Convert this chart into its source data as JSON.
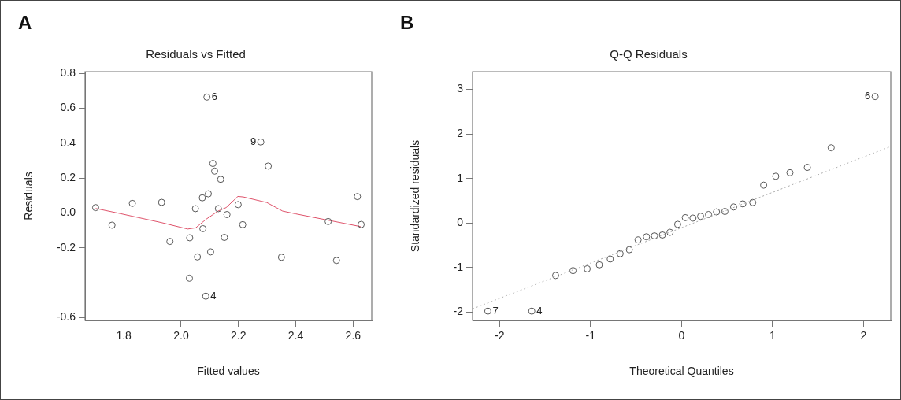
{
  "chart_data": [
    {
      "type": "scatter",
      "title": "Residuals vs Fitted",
      "xlabel": "Fitted values",
      "ylabel": "Residuals",
      "xlim": [
        1.665,
        2.665
      ],
      "ylim": [
        -0.616,
        0.81
      ],
      "xticks": [
        1.8,
        {
          "value": 2.0,
          "label": "2.0"
        },
        2.2,
        2.4,
        2.6
      ],
      "yticks": [
        -0.6,
        {
          "value": -0.4,
          "label": null
        },
        -0.2,
        {
          "value": 0,
          "label": "0.0"
        },
        0.2,
        0.4,
        0.6,
        0.8
      ],
      "grid": false,
      "legend": false,
      "ref_lines": [
        {
          "axis": "y",
          "value": 0,
          "color": "#d0d0d0",
          "line_style": "dotted"
        }
      ],
      "series": [
        {
          "type": "scatter",
          "color": "#595959",
          "marker": "circle",
          "x": [
            1.702,
            1.759,
            1.83,
            1.932,
            1.961,
            2.029,
            2.03,
            2.05,
            2.057,
            2.074,
            2.076,
            2.086,
            2.09,
            2.095,
            2.103,
            2.111,
            2.117,
            2.13,
            2.138,
            2.151,
            2.16,
            2.199,
            2.215,
            2.278,
            2.304,
            2.35,
            2.513,
            2.542,
            2.615,
            2.628
          ],
          "values": [
            0.031,
            -0.07,
            0.055,
            0.061,
            -0.163,
            -0.374,
            -0.142,
            0.025,
            -0.252,
            0.087,
            -0.09,
            -0.477,
            0.664,
            0.11,
            -0.223,
            0.284,
            0.24,
            0.025,
            0.193,
            -0.14,
            -0.009,
            0.048,
            -0.067,
            0.407,
            0.269,
            -0.254,
            -0.049,
            -0.272,
            0.094,
            -0.066
          ]
        },
        {
          "type": "line",
          "color": "#df536b",
          "marker": "none",
          "line_style": "solid",
          "x": [
            1.702,
            1.77,
            1.931,
            2.023,
            2.051,
            2.088,
            2.129,
            2.157,
            2.198,
            2.217,
            2.299,
            2.354,
            2.4,
            2.626
          ],
          "values": [
            0.026,
            0.003,
            -0.055,
            -0.092,
            -0.085,
            -0.035,
            0.011,
            0.031,
            0.095,
            0.092,
            0.06,
            0.011,
            -0.005,
            -0.078
          ]
        }
      ],
      "annotations": [
        "A",
        {
          "text": "6",
          "x": 2.09,
          "y": 0.664
        },
        {
          "text": "9",
          "x": 2.278,
          "y": 0.407
        },
        {
          "text": "4",
          "x": 2.086,
          "y": -0.477
        }
      ]
    },
    {
      "type": "scatter",
      "title": "Q-Q Residuals",
      "xlabel": "Theoretical Quantiles",
      "ylabel": "Standardized residuals",
      "xlim": [
        -2.296,
        2.3
      ],
      "ylim": [
        -2.19,
        3.4
      ],
      "xticks": [
        -2,
        -1,
        0,
        1,
        2
      ],
      "yticks": [
        -2,
        -1,
        0,
        1,
        2,
        3
      ],
      "grid": false,
      "legend": false,
      "series": [
        {
          "type": "line",
          "color": "#aaaaaa",
          "marker": "none",
          "line_style": "dotted",
          "x": [
            -2.296,
            2.288
          ],
          "values": [
            -1.93,
            1.71
          ]
        },
        {
          "type": "scatter",
          "color": "#595959",
          "marker": "circle",
          "x": [
            -2.128,
            -1.645,
            -1.383,
            -1.192,
            -1.036,
            -0.903,
            -0.783,
            -0.674,
            -0.573,
            -0.477,
            -0.385,
            -0.297,
            -0.21,
            -0.126,
            -0.042,
            0.042,
            0.126,
            0.21,
            0.297,
            0.385,
            0.477,
            0.573,
            0.674,
            0.783,
            0.903,
            1.036,
            1.192,
            1.383,
            1.645,
            2.128
          ],
          "values": [
            -1.98,
            -1.98,
            -1.18,
            -1.07,
            -1.03,
            -0.94,
            -0.81,
            -0.69,
            -0.6,
            -0.38,
            -0.31,
            -0.29,
            -0.27,
            -0.21,
            -0.03,
            0.12,
            0.11,
            0.15,
            0.19,
            0.25,
            0.26,
            0.36,
            0.43,
            0.46,
            0.85,
            1.05,
            1.13,
            1.25,
            1.69,
            2.84
          ]
        }
      ],
      "annotations": [
        "B",
        {
          "text": "7",
          "x": -2.128,
          "y": -1.98
        },
        {
          "text": "4",
          "x": -1.645,
          "y": -1.98
        },
        {
          "text": "6",
          "x": 2.128,
          "y": 2.84
        }
      ]
    }
  ]
}
